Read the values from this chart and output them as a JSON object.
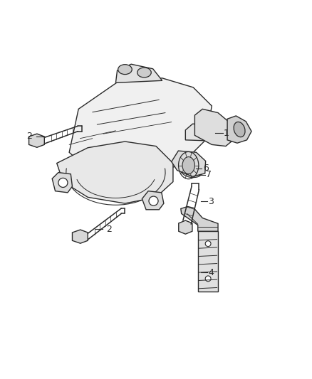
{
  "background_color": "#ffffff",
  "line_color": "#2a2a2a",
  "line_width": 1.0,
  "label_color": "#2a2a2a",
  "label_fontsize": 9,
  "figsize": [
    4.38,
    5.33
  ],
  "dpi": 100
}
